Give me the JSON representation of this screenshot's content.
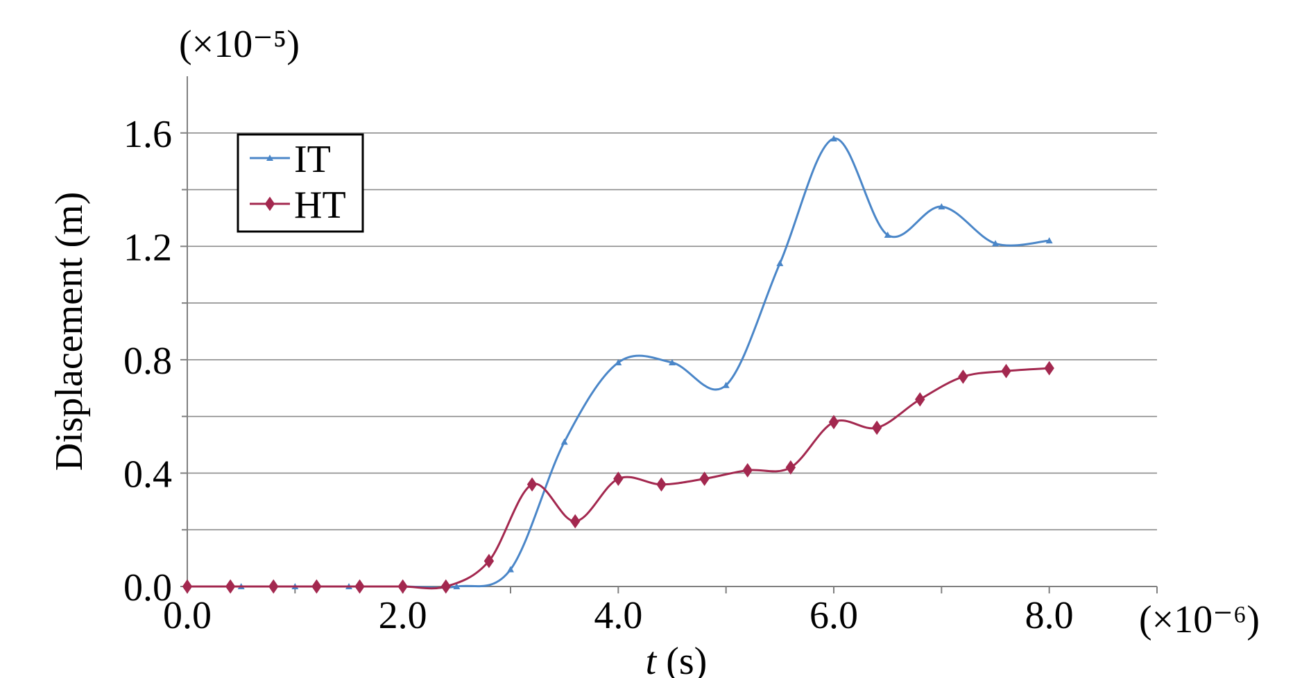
{
  "chart_data": {
    "type": "line",
    "title": "",
    "xlabel_italic": "t",
    "xlabel_rest": " (s)",
    "ylabel": "Displacement (m)",
    "x_multiplier": "(×10⁻⁶)",
    "y_multiplier": "(×10⁻⁵)",
    "xlim": [
      0,
      9
    ],
    "ylim": [
      0,
      1.8
    ],
    "x_ticks": [
      0,
      2,
      4,
      6,
      8
    ],
    "x_tick_labels": [
      "0.0",
      "2.0",
      "4.0",
      "6.0",
      "8.0"
    ],
    "y_ticks": [
      0,
      0.4,
      0.8,
      1.2,
      1.6
    ],
    "y_tick_labels": [
      "0.0",
      "0.4",
      "0.8",
      "1.2",
      "1.6"
    ],
    "y_grid": [
      0.2,
      0.4,
      0.6,
      0.8,
      1.0,
      1.2,
      1.4,
      1.6
    ],
    "grid": true,
    "legend_position": "top-left",
    "series": [
      {
        "name": "IT",
        "color": "#4A86C8",
        "marker": "triangle",
        "x": [
          0,
          0.5,
          1.0,
          1.5,
          2.0,
          2.5,
          3.0,
          3.5,
          4.0,
          4.5,
          5.0,
          5.5,
          6.0,
          6.5,
          7.0,
          7.5,
          8.0
        ],
        "y": [
          0,
          0,
          0,
          0,
          0,
          0,
          0.06,
          0.51,
          0.79,
          0.79,
          0.71,
          1.14,
          1.58,
          1.24,
          1.34,
          1.21,
          1.22
        ]
      },
      {
        "name": "HT",
        "color": "#A3284F",
        "marker": "diamond",
        "x": [
          0,
          0.4,
          0.8,
          1.2,
          1.6,
          2.0,
          2.4,
          2.8,
          3.2,
          3.6,
          4.0,
          4.4,
          4.8,
          5.2,
          5.6,
          6.0,
          6.4,
          6.8,
          7.2,
          7.6,
          8.0
        ],
        "y": [
          0,
          0,
          0,
          0,
          0,
          0,
          0,
          0.09,
          0.36,
          0.23,
          0.38,
          0.36,
          0.38,
          0.41,
          0.42,
          0.58,
          0.56,
          0.66,
          0.74,
          0.76,
          0.77
        ]
      }
    ]
  }
}
